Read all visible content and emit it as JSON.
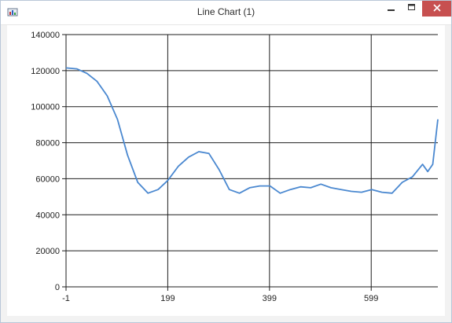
{
  "window": {
    "title": "Line Chart (1)"
  },
  "controls": {
    "minimize_icon": "minimize-icon",
    "maximize_icon": "maximize-icon",
    "close_icon": "close-icon"
  },
  "colors": {
    "line": "#4a88d0",
    "grid": "#1e1e1e",
    "close_button": "#c75050"
  },
  "chart_data": {
    "type": "line",
    "title": "",
    "xlabel": "",
    "ylabel": "",
    "xlim": [
      -1,
      730
    ],
    "ylim": [
      0,
      140000
    ],
    "x_ticks": [
      "-1",
      "199",
      "399",
      "599"
    ],
    "y_ticks": [
      "0",
      "20000",
      "40000",
      "60000",
      "80000",
      "100000",
      "120000",
      "140000"
    ],
    "grid": true,
    "legend": "none",
    "series": [
      {
        "x": [
          -1,
          20,
          40,
          60,
          80,
          100,
          120,
          140,
          160,
          180,
          199,
          220,
          240,
          260,
          280,
          300,
          320,
          340,
          360,
          380,
          400,
          420,
          440,
          460,
          480,
          500,
          520,
          540,
          560,
          580,
          600,
          620,
          640,
          660,
          680,
          700,
          710,
          720,
          730
        ],
        "y": [
          121500,
          121000,
          118500,
          114000,
          106000,
          93000,
          73000,
          58000,
          52000,
          54000,
          59000,
          67000,
          72000,
          75000,
          74000,
          65000,
          54000,
          52000,
          55000,
          56000,
          56000,
          52000,
          54000,
          55500,
          55000,
          57000,
          55000,
          54000,
          53000,
          52500,
          54000,
          52500,
          52000,
          58000,
          61000,
          68000,
          64000,
          68000,
          93000
        ]
      }
    ]
  }
}
